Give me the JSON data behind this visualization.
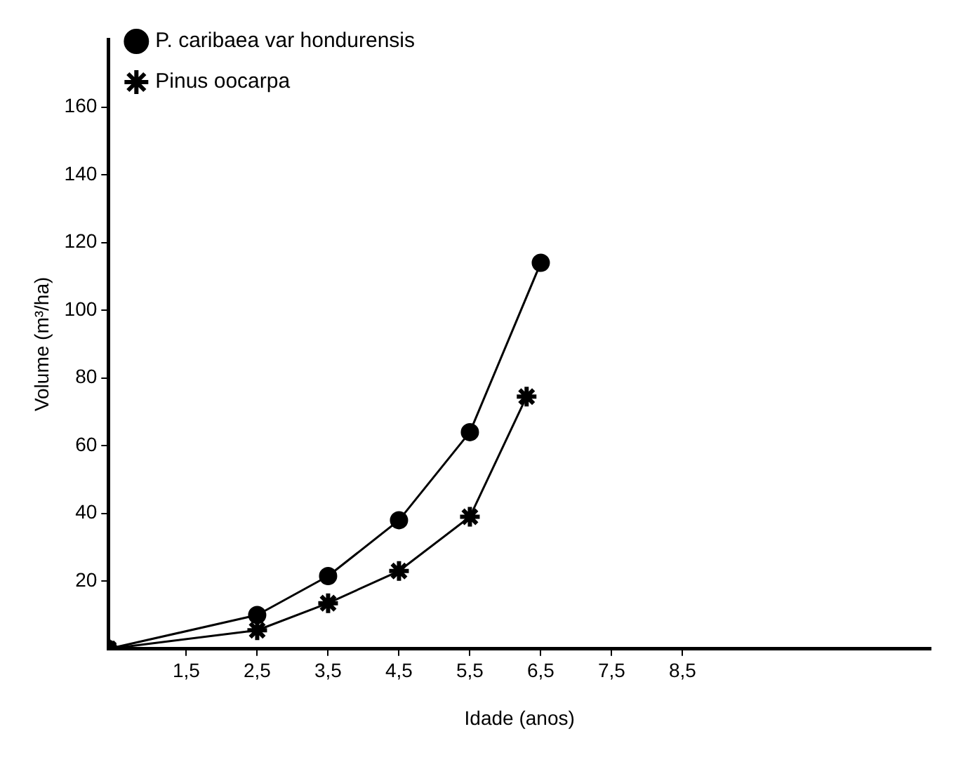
{
  "chart_data": {
    "type": "line",
    "xlabel": "Idade (anos)",
    "ylabel": "Volume (m³/ha)",
    "xlim": [
      0.4,
      12
    ],
    "ylim": [
      0,
      180
    ],
    "xticks": [
      {
        "value": 1.5,
        "label": "1,5"
      },
      {
        "value": 2.5,
        "label": "2,5"
      },
      {
        "value": 3.5,
        "label": "3,5"
      },
      {
        "value": 4.5,
        "label": "4,5"
      },
      {
        "value": 5.5,
        "label": "5,5"
      },
      {
        "value": 6.5,
        "label": "6,5"
      },
      {
        "value": 7.5,
        "label": "7,5"
      },
      {
        "value": 8.5,
        "label": "8,5"
      }
    ],
    "yticks": [
      20,
      40,
      60,
      80,
      100,
      120,
      140,
      160
    ],
    "grid": false,
    "legend": "top left",
    "line_style": "solid",
    "series": [
      {
        "name": "P. caribaea var hondurensis",
        "color": "#000000",
        "marker": "circle",
        "x": [
          0.4,
          2.5,
          3.5,
          4.5,
          5.5,
          6.5
        ],
        "values": [
          0,
          10,
          21.5,
          38,
          64,
          114
        ]
      },
      {
        "name": "Pinus oocarpa",
        "color": "#000000",
        "marker": "cross",
        "x": [
          0.4,
          2.5,
          3.5,
          4.5,
          5.5,
          6.3
        ],
        "values": [
          0,
          5.5,
          13.5,
          23,
          39,
          74.5
        ]
      }
    ]
  }
}
